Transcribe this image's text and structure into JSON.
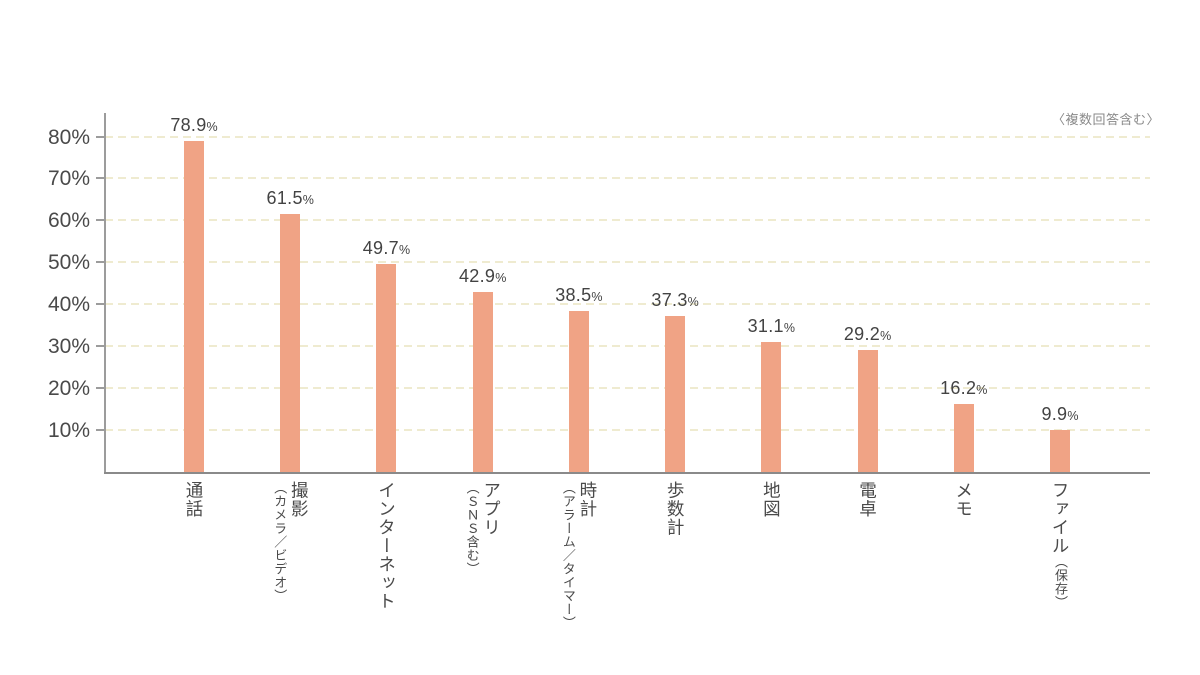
{
  "note": "〈複数回答含む〉",
  "colors": {
    "bar": "#F0A385",
    "grid": "#EFEBD0",
    "y_axis": "#9C9C9C",
    "x_axis": "#8A8A8A",
    "text": "#4A4A4A",
    "note_text": "#8A8A8A"
  },
  "chart_data": {
    "type": "bar",
    "title": "",
    "note": "〈複数回答含む〉",
    "categories": [
      {
        "main": "通話",
        "sub": "",
        "sub_inline": false
      },
      {
        "main": "撮影",
        "sub": "（カメラ／ビデオ）",
        "sub_inline": false
      },
      {
        "main": "インターネット",
        "sub": "",
        "sub_inline": false
      },
      {
        "main": "アプリ",
        "sub": "（ＳＮＳ含む）",
        "sub_inline": false
      },
      {
        "main": "時計",
        "sub": "（アラーム／タイマー）",
        "sub_inline": false
      },
      {
        "main": "歩数計",
        "sub": "",
        "sub_inline": false
      },
      {
        "main": "地図",
        "sub": "",
        "sub_inline": false
      },
      {
        "main": "電卓",
        "sub": "",
        "sub_inline": false
      },
      {
        "main": "メモ",
        "sub": "",
        "sub_inline": false
      },
      {
        "main": "ファイル",
        "sub": "（保存）",
        "sub_inline": true
      }
    ],
    "values": [
      78.9,
      61.5,
      49.7,
      42.9,
      38.5,
      37.3,
      31.1,
      29.2,
      16.2,
      9.9
    ],
    "value_suffix": "%",
    "y_ticks": [
      10,
      20,
      30,
      40,
      50,
      60,
      70,
      80
    ],
    "y_tick_suffix": "%",
    "ylim": [
      0,
      85.6
    ],
    "xlabel": "",
    "ylabel": "",
    "grid": "horizontal-dashed",
    "legend": "none"
  }
}
